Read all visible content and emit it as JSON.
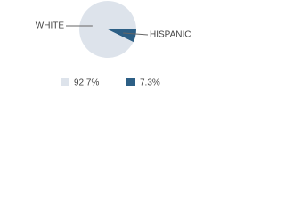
{
  "chart_data": {
    "type": "pie",
    "categories": [
      "WHITE",
      "HISPANIC"
    ],
    "values": [
      92.7,
      7.3
    ],
    "value_labels": [
      "92.7%",
      "7.3%"
    ],
    "colors": [
      "#dde3eb",
      "#2d5f85"
    ]
  }
}
